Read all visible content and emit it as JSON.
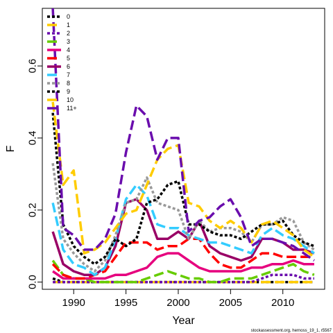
{
  "chart_data": {
    "type": "line",
    "title": "",
    "xlabel": "Year",
    "ylabel": "F",
    "xlim": [
      1987,
      2014
    ],
    "ylim": [
      -0.02,
      0.76
    ],
    "x_ticks": [
      1990,
      1995,
      2000,
      2005,
      2010
    ],
    "y_ticks": [
      0.0,
      0.2,
      0.4,
      0.6
    ],
    "y_tick_labels": [
      "0.0",
      "0.2",
      "0.4",
      "0.6"
    ],
    "grid": false,
    "legend_position": "top-left",
    "credit": "stockassessment.org, hernoss_19_1, r5567",
    "x": [
      1988,
      1989,
      1990,
      1991,
      1992,
      1993,
      1994,
      1995,
      1996,
      1997,
      1998,
      1999,
      2000,
      2001,
      2002,
      2003,
      2004,
      2005,
      2006,
      2007,
      2008,
      2009,
      2010,
      2011,
      2012,
      2013
    ],
    "series": [
      {
        "name": "0",
        "color": "#000000",
        "dash": "4 3",
        "values": [
          0.01,
          0.0,
          0.0,
          0.0,
          0.0,
          0.0,
          0.0,
          0.0,
          0.0,
          0.0,
          0.0,
          0.0,
          0.0,
          0.0,
          0.0,
          0.0,
          0.0,
          0.0,
          0.0,
          0.0,
          0.0,
          0.0,
          0.0,
          0.0,
          0.0,
          0.0
        ]
      },
      {
        "name": "1",
        "color": "#ffcc00",
        "dash": "14 6",
        "values": [
          0.0,
          0.0,
          0.0,
          0.0,
          0.0,
          0.0,
          0.0,
          0.0,
          0.0,
          0.0,
          0.0,
          0.0,
          0.0,
          0.0,
          0.0,
          0.0,
          0.0,
          0.0,
          0.0,
          0.0,
          0.0,
          0.0,
          0.0,
          0.0,
          0.0,
          0.0
        ]
      },
      {
        "name": "2",
        "color": "#6a0dad",
        "dash": "4 3",
        "values": [
          0.0,
          0.0,
          0.0,
          0.0,
          0.0,
          0.0,
          0.0,
          0.0,
          0.0,
          0.0,
          0.0,
          0.0,
          0.0,
          0.0,
          0.0,
          0.0,
          0.0,
          0.0,
          0.0,
          0.0,
          0.01,
          0.02,
          0.02,
          0.02,
          0.01,
          0.01
        ]
      },
      {
        "name": "3",
        "color": "#66cc00",
        "dash": "14 6",
        "values": [
          0.06,
          0.02,
          0.01,
          0.01,
          0.0,
          0.0,
          0.0,
          0.0,
          0.0,
          0.01,
          0.02,
          0.03,
          0.02,
          0.01,
          0.01,
          0.0,
          0.0,
          0.01,
          0.01,
          0.01,
          0.02,
          0.03,
          0.04,
          0.05,
          0.03,
          0.02
        ]
      },
      {
        "name": "4",
        "color": "#e6007e",
        "dash": "",
        "values": [
          0.03,
          0.01,
          0.01,
          0.01,
          0.01,
          0.01,
          0.02,
          0.02,
          0.03,
          0.04,
          0.07,
          0.08,
          0.08,
          0.06,
          0.04,
          0.03,
          0.03,
          0.03,
          0.03,
          0.04,
          0.04,
          0.05,
          0.05,
          0.06,
          0.05,
          0.05
        ]
      },
      {
        "name": "5",
        "color": "#ff0000",
        "dash": "14 6",
        "values": [
          0.05,
          0.02,
          0.01,
          0.01,
          0.02,
          0.03,
          0.07,
          0.11,
          0.11,
          0.11,
          0.09,
          0.1,
          0.1,
          0.12,
          0.12,
          0.08,
          0.05,
          0.04,
          0.04,
          0.06,
          0.08,
          0.08,
          0.07,
          0.07,
          0.07,
          0.07
        ]
      },
      {
        "name": "6",
        "color": "#990066",
        "dash": "",
        "values": [
          0.14,
          0.05,
          0.03,
          0.02,
          0.02,
          0.04,
          0.1,
          0.22,
          0.23,
          0.2,
          0.12,
          0.12,
          0.14,
          0.12,
          0.17,
          0.1,
          0.08,
          0.07,
          0.06,
          0.07,
          0.12,
          0.12,
          0.11,
          0.09,
          0.09,
          0.08
        ]
      },
      {
        "name": "7",
        "color": "#33ccff",
        "dash": "14 6",
        "values": [
          0.22,
          0.09,
          0.05,
          0.04,
          0.02,
          0.04,
          0.12,
          0.23,
          0.27,
          0.24,
          0.16,
          0.15,
          0.15,
          0.13,
          0.12,
          0.11,
          0.11,
          0.1,
          0.09,
          0.08,
          0.13,
          0.15,
          0.13,
          0.12,
          0.1,
          0.08
        ]
      },
      {
        "name": "8",
        "color": "#999999",
        "dash": "4 3",
        "values": [
          0.33,
          0.12,
          0.08,
          0.05,
          0.03,
          0.06,
          0.13,
          0.22,
          0.23,
          0.29,
          0.22,
          0.21,
          0.2,
          0.12,
          0.17,
          0.14,
          0.15,
          0.15,
          0.14,
          0.11,
          0.16,
          0.16,
          0.18,
          0.17,
          0.11,
          0.09
        ]
      },
      {
        "name": "9",
        "color": "#000000",
        "dash": "4 3",
        "values": [
          0.47,
          0.16,
          0.1,
          0.07,
          0.05,
          0.07,
          0.12,
          0.1,
          0.12,
          0.22,
          0.23,
          0.27,
          0.28,
          0.16,
          0.16,
          0.14,
          0.13,
          0.13,
          0.12,
          0.14,
          0.16,
          0.16,
          0.17,
          0.13,
          0.11,
          0.1
        ]
      },
      {
        "name": "10",
        "color": "#ffcc00",
        "dash": "14 6",
        "values": [
          0.5,
          0.27,
          0.31,
          0.08,
          0.09,
          0.11,
          0.15,
          0.19,
          0.2,
          0.27,
          0.34,
          0.37,
          0.38,
          0.22,
          0.21,
          0.17,
          0.15,
          0.17,
          0.15,
          0.11,
          0.16,
          0.17,
          0.15,
          0.13,
          0.09,
          0.07
        ]
      },
      {
        "name": "11+",
        "color": "#6a0dad",
        "dash": "14 6",
        "values": [
          0.76,
          0.15,
          0.13,
          0.09,
          0.09,
          0.12,
          0.19,
          0.36,
          0.49,
          0.46,
          0.34,
          0.4,
          0.4,
          0.14,
          0.17,
          0.18,
          0.21,
          0.23,
          0.18,
          0.1,
          0.12,
          0.12,
          0.11,
          0.1,
          0.08,
          0.06
        ]
      }
    ]
  }
}
